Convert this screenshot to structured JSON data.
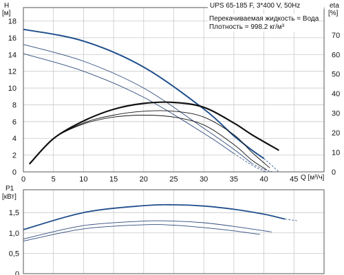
{
  "chart_data": [
    {
      "type": "line",
      "title": "UPS 65-185 F, 3*400 V, 50Hz",
      "notes": [
        "Перекачиваемая жидкость = Вода",
        "Плотность = 998.2 кг/м³"
      ],
      "xlabel": "Q [м³/ч]",
      "ylabel_left": [
        "H",
        "[м]"
      ],
      "ylabel_right": [
        "eta",
        "[%]"
      ],
      "xlim": [
        0,
        50
      ],
      "ylim": [
        0,
        19.6
      ],
      "ylim_right": [
        0,
        84
      ],
      "x_ticks": [
        "0",
        "5",
        "10",
        "15",
        "20",
        "25",
        "30",
        "35",
        "40",
        "45"
      ],
      "y_ticks": [
        "0",
        "2",
        "4",
        "6",
        "8",
        "10",
        "12",
        "14",
        "16",
        "18"
      ],
      "y_ticks_right": [
        "0",
        "10",
        "20",
        "30",
        "40",
        "50",
        "60",
        "70"
      ],
      "grid": true,
      "series": [
        {
          "axis": "left",
          "color": "#1f4e8c",
          "width": 2.0,
          "x": [
            0,
            10,
            20,
            30,
            35,
            38,
            40,
            42.5
          ],
          "y": [
            17.0,
            15.6,
            12.5,
            7.5,
            4.3,
            2.6,
            1.6,
            0.0
          ],
          "dashed_from_x": 40.5
        },
        {
          "axis": "left",
          "color": "#2d4a7c",
          "width": 0.9,
          "x": [
            0,
            10,
            20,
            30,
            35,
            38,
            40,
            41.5
          ],
          "y": [
            15.2,
            13.2,
            10.0,
            5.2,
            2.7,
            1.0,
            0.3,
            0.0
          ],
          "dashed_from_x": 38.5
        },
        {
          "axis": "left",
          "color": "#2d4a7c",
          "width": 0.9,
          "x": [
            0,
            10,
            20,
            30,
            35,
            38,
            40.3
          ],
          "y": [
            14.1,
            12.0,
            8.9,
            4.6,
            2.2,
            0.8,
            0.0
          ],
          "dashed_from_x": 37.5
        },
        {
          "axis": "right",
          "color": "#111111",
          "width": 2.2,
          "x": [
            1,
            5,
            10,
            15,
            20,
            25,
            30,
            35,
            38,
            42.5
          ],
          "y": [
            4,
            17,
            26,
            32,
            35,
            35.5,
            33,
            25,
            19,
            11
          ]
        },
        {
          "axis": "right",
          "color": "#111111",
          "width": 0.9,
          "x": [
            1,
            5,
            10,
            15,
            20,
            25,
            30,
            35,
            38,
            41
          ],
          "y": [
            4,
            17,
            25,
            29,
            31,
            31,
            28,
            19,
            10,
            2
          ]
        },
        {
          "axis": "right",
          "color": "#111111",
          "width": 0.9,
          "x": [
            1,
            5,
            10,
            15,
            20,
            25,
            30,
            35,
            38,
            40.5
          ],
          "y": [
            4,
            17,
            24.5,
            28,
            29,
            28,
            24,
            14,
            6,
            1
          ]
        }
      ]
    },
    {
      "type": "line",
      "ylabel": [
        "P1",
        "[кВт]"
      ],
      "xlim": [
        0,
        50
      ],
      "ylim": [
        0,
        2.06
      ],
      "y_ticks": [
        "0",
        "0,5",
        "1,0",
        "1,5"
      ],
      "grid": true,
      "series": [
        {
          "color": "#1f4e8c",
          "width": 1.8,
          "x": [
            0,
            10,
            20,
            25,
            30,
            35,
            40,
            43.5
          ],
          "y": [
            1.08,
            1.5,
            1.67,
            1.69,
            1.66,
            1.58,
            1.46,
            1.34
          ],
          "dashed_from_x": 43.5,
          "dash_to": [
            45.5,
            1.3
          ]
        },
        {
          "color": "#2d4a7c",
          "width": 0.9,
          "x": [
            0,
            10,
            20,
            25,
            30,
            35,
            41
          ],
          "y": [
            0.85,
            1.18,
            1.29,
            1.29,
            1.25,
            1.16,
            1.03
          ],
          "dashed_from_x": 41,
          "dash_to": [
            41.5,
            1.02
          ]
        },
        {
          "color": "#2d4a7c",
          "width": 0.9,
          "x": [
            0,
            10,
            20,
            25,
            30,
            35,
            39
          ],
          "y": [
            0.8,
            1.1,
            1.2,
            1.19,
            1.13,
            1.05,
            0.97
          ],
          "dashed_from_x": 39,
          "dash_to": [
            39.5,
            0.96
          ]
        }
      ]
    }
  ]
}
